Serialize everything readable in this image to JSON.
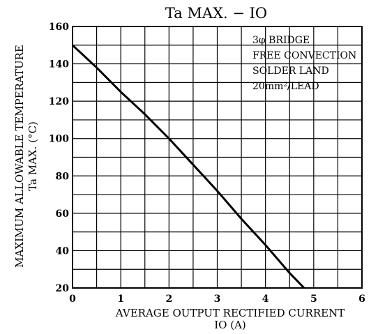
{
  "chart_data": {
    "type": "line",
    "title": "Ta MAX. − IO",
    "xlabel_line1": "AVERAGE OUTPUT RECTIFIED CURRENT",
    "xlabel_line2": "IO  (A)",
    "ylabel_line1": "MAXIMUM ALLOWABLE TEMPERATURE",
    "ylabel_line2": "Ta  MAX.  (°C)",
    "xlim": [
      0,
      6
    ],
    "ylim": [
      20,
      160
    ],
    "xticks": [
      0,
      1,
      2,
      3,
      4,
      5,
      6
    ],
    "yticks": [
      20,
      40,
      60,
      80,
      100,
      120,
      140,
      160
    ],
    "grid": true,
    "grid_minor": {
      "x_step": 0.5,
      "y_step": 10
    },
    "annotation": {
      "lines": [
        "3φ BRIDGE",
        "FREE CONVECTION",
        "SOLDER LAND",
        "20mm²/LEAD"
      ],
      "placement": "top-right"
    },
    "series": [
      {
        "x": [
          0,
          0.5,
          1.0,
          1.5,
          2.0,
          2.5,
          3.0,
          3.5,
          4.0,
          4.5,
          4.8
        ],
        "y": [
          150,
          138,
          125,
          113,
          100,
          86,
          72,
          57,
          43,
          28,
          20
        ]
      }
    ]
  }
}
